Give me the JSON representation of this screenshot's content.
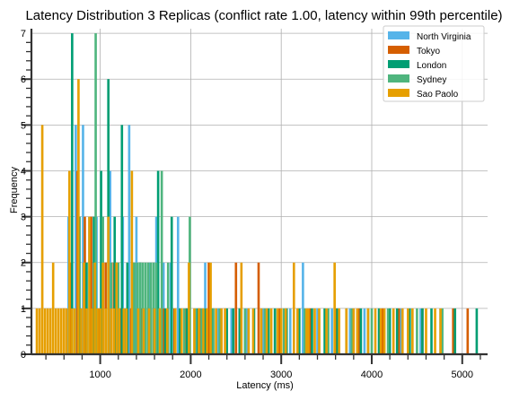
{
  "chart_data": {
    "type": "bar",
    "title": "Latency Distribution 3 Replicas (conflict rate 1.00, latency within 99th percentile)",
    "xlabel": "Latency (ms)",
    "ylabel": "Frequency",
    "xlim": [
      240,
      5280
    ],
    "ylim": [
      0,
      7.1
    ],
    "x_ticks": [
      1000,
      2000,
      3000,
      4000,
      5000
    ],
    "y_ticks": [
      0,
      1,
      2,
      3,
      4,
      5,
      6,
      7
    ],
    "grid": true,
    "legend_position": "top-right",
    "bin_width": 26,
    "series": [
      {
        "name": "North Virginia",
        "color": "#56b4e9",
        "bins": [
          [
            650,
            3
          ],
          [
            730,
            5
          ],
          [
            810,
            5
          ],
          [
            880,
            3
          ],
          [
            960,
            3
          ],
          [
            1030,
            3
          ],
          [
            1110,
            4
          ],
          [
            1180,
            2
          ],
          [
            1250,
            3
          ],
          [
            1320,
            5
          ],
          [
            1400,
            3
          ],
          [
            1470,
            1
          ],
          [
            1550,
            2
          ],
          [
            1620,
            3
          ],
          [
            1700,
            2
          ],
          [
            1780,
            2
          ],
          [
            1860,
            3
          ],
          [
            1960,
            1
          ],
          [
            2060,
            1
          ],
          [
            2160,
            2
          ],
          [
            2300,
            1
          ],
          [
            2450,
            1
          ],
          [
            2620,
            1
          ],
          [
            2800,
            1
          ],
          [
            2960,
            1
          ],
          [
            3100,
            1
          ],
          [
            3240,
            2
          ],
          [
            3400,
            1
          ],
          [
            3560,
            1
          ],
          [
            3760,
            1
          ],
          [
            3920,
            1
          ],
          [
            4100,
            1
          ],
          [
            4320,
            1
          ],
          [
            4540,
            1
          ],
          [
            4760,
            1
          ]
        ]
      },
      {
        "name": "Tokyo",
        "color": "#d55e00",
        "bins": [
          [
            600,
            1
          ],
          [
            680,
            2
          ],
          [
            750,
            4
          ],
          [
            830,
            3
          ],
          [
            900,
            3
          ],
          [
            980,
            1
          ],
          [
            1060,
            2
          ],
          [
            1150,
            2
          ],
          [
            1230,
            1
          ],
          [
            1340,
            1
          ],
          [
            1450,
            1
          ],
          [
            1560,
            1
          ],
          [
            1700,
            1
          ],
          [
            1820,
            1
          ],
          [
            1950,
            1
          ],
          [
            2100,
            1
          ],
          [
            2200,
            2
          ],
          [
            2380,
            1
          ],
          [
            2500,
            2
          ],
          [
            2750,
            2
          ],
          [
            2980,
            1
          ],
          [
            3320,
            1
          ],
          [
            3600,
            1
          ],
          [
            3860,
            1
          ],
          [
            4120,
            1
          ],
          [
            4300,
            1
          ],
          [
            4560,
            1
          ],
          [
            4900,
            1
          ],
          [
            5060,
            1
          ]
        ]
      },
      {
        "name": "London",
        "color": "#009e73",
        "bins": [
          [
            690,
            7
          ],
          [
            770,
            3
          ],
          [
            850,
            2
          ],
          [
            930,
            3
          ],
          [
            1010,
            4
          ],
          [
            1090,
            6
          ],
          [
            1160,
            3
          ],
          [
            1240,
            5
          ],
          [
            1300,
            2
          ],
          [
            1380,
            1
          ],
          [
            1440,
            2
          ],
          [
            1530,
            1
          ],
          [
            1640,
            4
          ],
          [
            1720,
            1
          ],
          [
            1790,
            3
          ],
          [
            1880,
            1
          ],
          [
            1960,
            1
          ],
          [
            2080,
            1
          ],
          [
            2160,
            1
          ],
          [
            2240,
            1
          ],
          [
            2400,
            1
          ],
          [
            2470,
            1
          ],
          [
            2540,
            1
          ],
          [
            2700,
            1
          ],
          [
            2860,
            1
          ],
          [
            2930,
            1
          ],
          [
            3060,
            1
          ],
          [
            3200,
            1
          ],
          [
            3340,
            1
          ],
          [
            3480,
            1
          ],
          [
            3620,
            1
          ],
          [
            3720,
            1
          ],
          [
            3880,
            1
          ],
          [
            3960,
            1
          ],
          [
            4080,
            1
          ],
          [
            4200,
            1
          ],
          [
            4280,
            1
          ],
          [
            4420,
            1
          ],
          [
            4560,
            1
          ],
          [
            4660,
            1
          ],
          [
            4920,
            1
          ],
          [
            5160,
            1
          ]
        ]
      },
      {
        "name": "Sydney",
        "color": "#4fb57e",
        "bins": [
          [
            950,
            7
          ],
          [
            1030,
            3
          ],
          [
            1120,
            2
          ],
          [
            1200,
            2
          ],
          [
            1280,
            1
          ],
          [
            1360,
            2
          ],
          [
            1380,
            2
          ],
          [
            1410,
            2
          ],
          [
            1440,
            2
          ],
          [
            1470,
            2
          ],
          [
            1500,
            2
          ],
          [
            1530,
            2
          ],
          [
            1560,
            2
          ],
          [
            1590,
            2
          ],
          [
            1620,
            2
          ],
          [
            1650,
            1
          ],
          [
            1680,
            4
          ],
          [
            1750,
            2
          ],
          [
            1830,
            1
          ],
          [
            1930,
            1
          ],
          [
            1990,
            3
          ],
          [
            2050,
            1
          ],
          [
            2120,
            1
          ],
          [
            2250,
            1
          ],
          [
            2320,
            1
          ],
          [
            2600,
            1
          ],
          [
            2820,
            1
          ],
          [
            3030,
            1
          ],
          [
            3260,
            1
          ],
          [
            3520,
            1
          ],
          [
            3780,
            1
          ],
          [
            4000,
            1
          ],
          [
            4180,
            1
          ],
          [
            4500,
            1
          ],
          [
            4780,
            1
          ]
        ]
      },
      {
        "name": "Sao Paolo",
        "color": "#e69f00",
        "bins": [
          [
            300,
            1
          ],
          [
            330,
            1
          ],
          [
            360,
            5
          ],
          [
            390,
            1
          ],
          [
            420,
            1
          ],
          [
            450,
            1
          ],
          [
            480,
            2
          ],
          [
            510,
            1
          ],
          [
            540,
            1
          ],
          [
            570,
            1
          ],
          [
            600,
            1
          ],
          [
            630,
            1
          ],
          [
            660,
            4
          ],
          [
            690,
            1
          ],
          [
            720,
            1
          ],
          [
            760,
            6
          ],
          [
            790,
            1
          ],
          [
            820,
            2
          ],
          [
            850,
            1
          ],
          [
            880,
            3
          ],
          [
            910,
            1
          ],
          [
            940,
            2
          ],
          [
            970,
            1
          ],
          [
            1000,
            1
          ],
          [
            1030,
            2
          ],
          [
            1060,
            1
          ],
          [
            1090,
            3
          ],
          [
            1120,
            1
          ],
          [
            1150,
            1
          ],
          [
            1180,
            2
          ],
          [
            1210,
            1
          ],
          [
            1260,
            1
          ],
          [
            1290,
            1
          ],
          [
            1350,
            4
          ],
          [
            1420,
            1
          ],
          [
            1480,
            1
          ],
          [
            1540,
            1
          ],
          [
            1600,
            1
          ],
          [
            1660,
            1
          ],
          [
            1740,
            1
          ],
          [
            1830,
            1
          ],
          [
            1900,
            1
          ],
          [
            1980,
            2
          ],
          [
            2040,
            1
          ],
          [
            2090,
            1
          ],
          [
            2140,
            1
          ],
          [
            2180,
            1
          ],
          [
            2220,
            2
          ],
          [
            2280,
            1
          ],
          [
            2340,
            1
          ],
          [
            2380,
            1
          ],
          [
            2560,
            2
          ],
          [
            2640,
            1
          ],
          [
            2690,
            1
          ],
          [
            2780,
            1
          ],
          [
            2840,
            1
          ],
          [
            2890,
            1
          ],
          [
            2960,
            1
          ],
          [
            3000,
            1
          ],
          [
            3050,
            1
          ],
          [
            3140,
            2
          ],
          [
            3180,
            1
          ],
          [
            3280,
            1
          ],
          [
            3300,
            1
          ],
          [
            3370,
            1
          ],
          [
            3420,
            1
          ],
          [
            3500,
            1
          ],
          [
            3590,
            2
          ],
          [
            3640,
            1
          ],
          [
            3720,
            1
          ],
          [
            3800,
            1
          ],
          [
            3840,
            1
          ],
          [
            3960,
            1
          ],
          [
            4040,
            1
          ],
          [
            4100,
            1
          ],
          [
            4140,
            1
          ],
          [
            4240,
            1
          ],
          [
            4340,
            1
          ],
          [
            4400,
            1
          ],
          [
            4450,
            1
          ],
          [
            4600,
            1
          ],
          [
            4700,
            1
          ],
          [
            4760,
            1
          ]
        ]
      }
    ]
  }
}
